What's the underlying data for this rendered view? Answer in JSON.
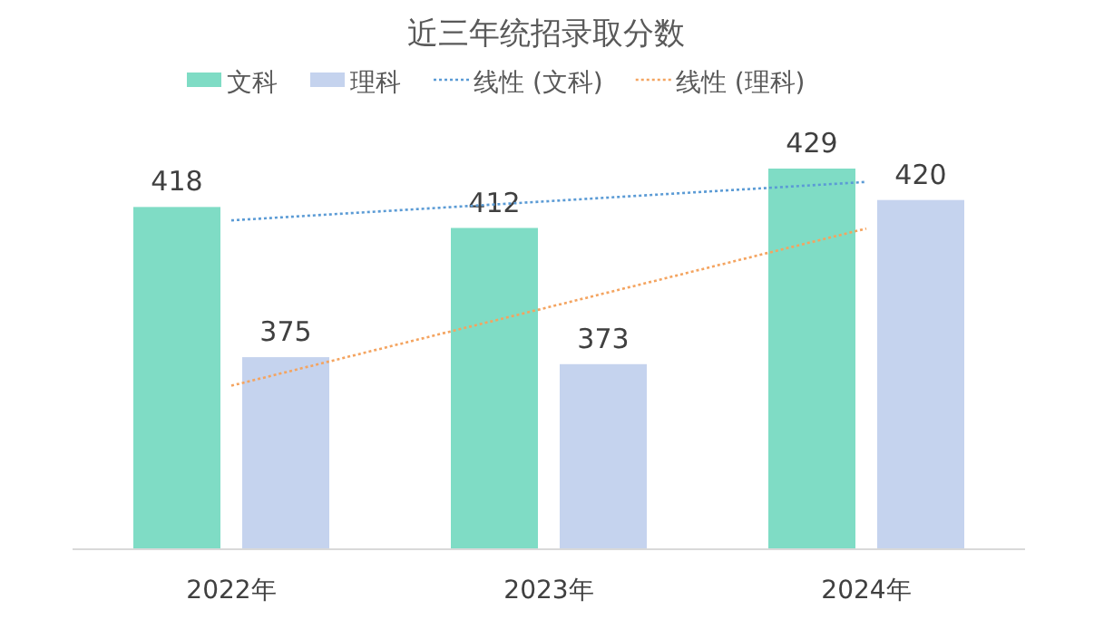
{
  "chart_data": {
    "type": "bar",
    "title": "近三年统招录取分数",
    "categories": [
      "2022年",
      "2023年",
      "2024年"
    ],
    "relative": false,
    "ylim": [
      320,
      429
    ],
    "legend": "top",
    "series": [
      {
        "name": "文科",
        "color": "#7fdcc5",
        "values": [
          418,
          412,
          429
        ],
        "value_labels": [
          "418",
          "412",
          "429"
        ]
      },
      {
        "name": "理科",
        "color": "#c5d3ee",
        "values": [
          375,
          373,
          420
        ],
        "value_labels": [
          "375",
          "373",
          "420"
        ]
      },
      {
        "name": "线性 (文科)",
        "type": "line",
        "line_style": "dotted",
        "color": "#5b9bd5",
        "values": [
          414.17,
          419.67,
          425.17
        ]
      },
      {
        "name": "线性 (理科)",
        "type": "line",
        "line_style": "dotted",
        "color": "#f4a460",
        "values": [
          366.83,
          389.33,
          411.83
        ]
      }
    ]
  }
}
